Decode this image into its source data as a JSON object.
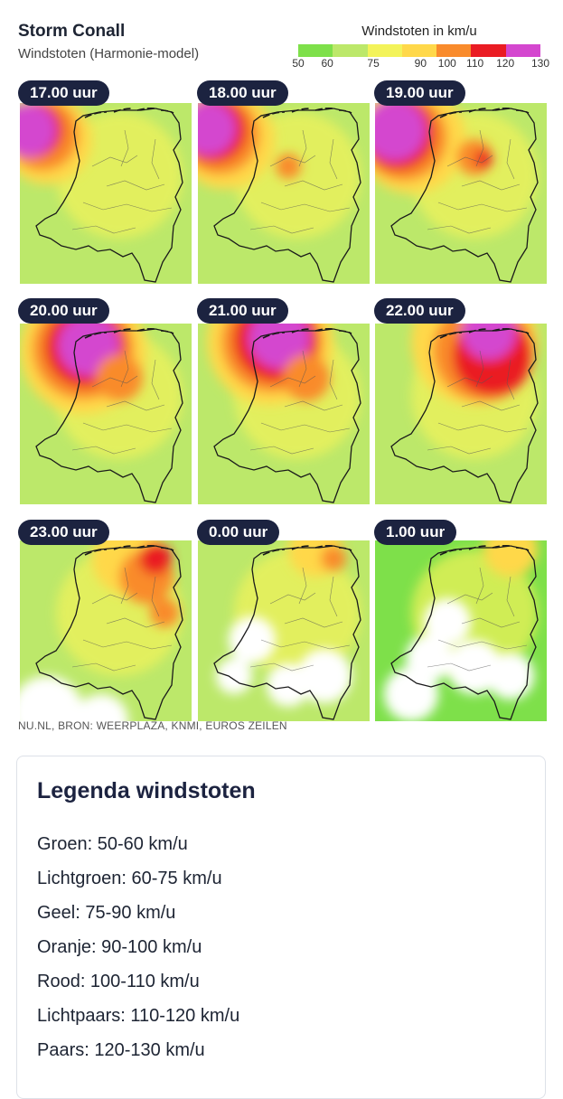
{
  "header": {
    "title": "Storm Conall",
    "subtitle": "Windstoten (Harmonie-model)"
  },
  "scale": {
    "title": "Windstoten in km/u",
    "ticks": [
      "50",
      "60",
      "75",
      "90",
      "100",
      "110",
      "120",
      "130"
    ],
    "colors": [
      "#7ee04a",
      "#bce86a",
      "#f3f35a",
      "#ffd84a",
      "#f98b2c",
      "#ea1c23",
      "#d447cf",
      "#b83bd8"
    ]
  },
  "panels": [
    {
      "label": "17.00 uur"
    },
    {
      "label": "18.00 uur"
    },
    {
      "label": "19.00 uur"
    },
    {
      "label": "20.00 uur"
    },
    {
      "label": "21.00 uur"
    },
    {
      "label": "22.00 uur"
    },
    {
      "label": "23.00 uur"
    },
    {
      "label": "0.00 uur"
    },
    {
      "label": "1.00 uur"
    }
  ],
  "credit": "NU.NL, BRON: WEERPLAZA, KNMI, EUROS ZEILEN",
  "legend": {
    "title": "Legenda windstoten",
    "items": [
      "Groen: 50-60 km/u",
      "Lichtgroen: 60-75 km/u",
      "Geel: 75-90 km/u",
      "Oranje: 90-100 km/u",
      "Rood: 100-110 km/u",
      "Lichtpaars: 110-120 km/u",
      "Paars: 120-130 km/u"
    ]
  }
}
